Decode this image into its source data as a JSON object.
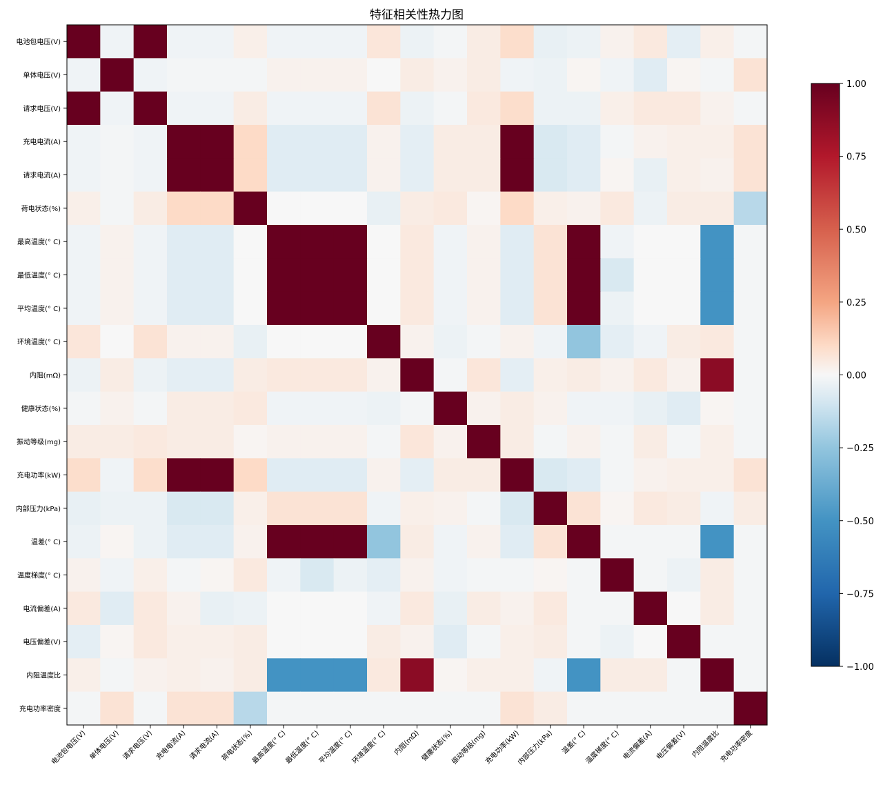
{
  "chart_data": {
    "type": "heatmap",
    "title": "特征相关性热力图",
    "labels": [
      "电池包电压(V)",
      "单体电压(V)",
      "请求电压(V)",
      "充电电流(A)",
      "请求电流(A)",
      "荷电状态(%)",
      "最高温度(° C)",
      "最低温度(° C)",
      "平均温度(° C)",
      "环境温度(° C)",
      "内阻(mΩ)",
      "健康状态(%)",
      "振动等级(mg)",
      "充电功率(kW)",
      "内部压力(kPa)",
      "温差(° C)",
      "温度梯度(° C)",
      "电流偏差(A)",
      "电压偏差(V)",
      "内阻温度比",
      "充电功率密度"
    ],
    "matrix": [
      [
        1.0,
        -0.02,
        1.0,
        -0.02,
        -0.02,
        0.03,
        -0.02,
        -0.02,
        -0.02,
        0.06,
        -0.03,
        -0.01,
        0.04,
        0.09,
        -0.04,
        -0.03,
        0.02,
        0.05,
        -0.05,
        0.03,
        -0.01
      ],
      [
        -0.02,
        1.0,
        -0.02,
        -0.01,
        -0.01,
        -0.01,
        0.02,
        0.02,
        0.02,
        0.0,
        0.04,
        0.02,
        0.04,
        -0.02,
        -0.03,
        0.01,
        -0.02,
        -0.06,
        0.01,
        -0.01,
        0.07
      ],
      [
        1.0,
        -0.02,
        1.0,
        -0.02,
        -0.02,
        0.04,
        -0.02,
        -0.02,
        -0.02,
        0.07,
        -0.03,
        -0.01,
        0.05,
        0.09,
        -0.03,
        -0.03,
        0.03,
        0.05,
        0.05,
        0.02,
        -0.01
      ],
      [
        -0.02,
        -0.01,
        -0.02,
        1.0,
        1.0,
        0.1,
        -0.06,
        -0.06,
        -0.06,
        0.02,
        -0.05,
        0.04,
        0.04,
        1.0,
        -0.08,
        -0.06,
        -0.01,
        0.02,
        0.03,
        0.03,
        0.07
      ],
      [
        -0.02,
        -0.01,
        -0.02,
        1.0,
        1.0,
        0.1,
        -0.06,
        -0.06,
        -0.06,
        0.02,
        -0.05,
        0.04,
        0.04,
        1.0,
        -0.08,
        -0.06,
        0.01,
        -0.04,
        0.03,
        0.02,
        0.07
      ],
      [
        0.03,
        -0.01,
        0.04,
        0.1,
        0.1,
        1.0,
        0.0,
        0.0,
        0.0,
        -0.04,
        0.04,
        0.05,
        0.01,
        0.1,
        0.03,
        0.02,
        0.05,
        -0.03,
        0.04,
        0.04,
        -0.16
      ],
      [
        -0.02,
        0.02,
        -0.02,
        -0.06,
        -0.06,
        0.0,
        1.0,
        1.0,
        1.0,
        0.0,
        0.05,
        -0.02,
        0.02,
        -0.06,
        0.07,
        1.0,
        -0.02,
        0.0,
        0.0,
        -0.5,
        -0.01
      ],
      [
        -0.02,
        0.02,
        -0.02,
        -0.06,
        -0.06,
        0.0,
        1.0,
        1.0,
        1.0,
        0.0,
        0.05,
        -0.02,
        0.02,
        -0.06,
        0.07,
        1.0,
        -0.08,
        0.0,
        0.0,
        -0.5,
        -0.01
      ],
      [
        -0.02,
        0.02,
        -0.02,
        -0.06,
        -0.06,
        0.0,
        1.0,
        1.0,
        1.0,
        0.0,
        0.05,
        -0.02,
        0.02,
        -0.06,
        0.07,
        1.0,
        -0.03,
        0.0,
        0.0,
        -0.5,
        -0.01
      ],
      [
        0.06,
        0.0,
        0.07,
        0.02,
        0.02,
        -0.04,
        0.0,
        0.0,
        0.0,
        1.0,
        0.02,
        -0.03,
        -0.01,
        0.02,
        -0.02,
        -0.25,
        -0.05,
        -0.02,
        0.04,
        0.05,
        -0.01
      ],
      [
        -0.03,
        0.04,
        -0.03,
        -0.05,
        -0.05,
        0.04,
        0.05,
        0.05,
        0.05,
        0.02,
        1.0,
        -0.01,
        0.06,
        -0.05,
        0.03,
        0.04,
        0.02,
        0.05,
        0.02,
        0.88,
        -0.01
      ],
      [
        -0.01,
        0.02,
        -0.01,
        0.04,
        0.04,
        0.05,
        -0.02,
        -0.02,
        -0.02,
        -0.03,
        -0.01,
        1.0,
        0.02,
        0.04,
        0.02,
        -0.02,
        -0.02,
        -0.04,
        -0.06,
        0.01,
        -0.01
      ],
      [
        0.04,
        0.04,
        0.05,
        0.04,
        0.04,
        0.01,
        0.02,
        0.02,
        0.02,
        -0.01,
        0.06,
        0.02,
        1.0,
        0.04,
        -0.01,
        0.02,
        -0.01,
        0.04,
        -0.01,
        0.03,
        -0.01
      ],
      [
        0.09,
        -0.02,
        0.09,
        1.0,
        1.0,
        0.1,
        -0.06,
        -0.06,
        -0.06,
        0.02,
        -0.05,
        0.04,
        0.04,
        1.0,
        -0.08,
        -0.06,
        -0.01,
        0.02,
        0.03,
        0.03,
        0.07
      ],
      [
        -0.04,
        -0.03,
        -0.03,
        -0.08,
        -0.08,
        0.03,
        0.07,
        0.07,
        0.07,
        -0.02,
        0.03,
        0.02,
        -0.01,
        -0.08,
        1.0,
        0.07,
        0.01,
        0.05,
        0.04,
        -0.02,
        0.04
      ],
      [
        -0.03,
        0.01,
        -0.03,
        -0.06,
        -0.06,
        0.02,
        1.0,
        1.0,
        1.0,
        -0.25,
        0.04,
        -0.02,
        0.02,
        -0.06,
        0.07,
        1.0,
        -0.01,
        -0.01,
        -0.01,
        -0.5,
        -0.01
      ],
      [
        0.02,
        -0.02,
        0.03,
        -0.01,
        0.01,
        0.05,
        -0.02,
        -0.08,
        -0.03,
        -0.05,
        0.02,
        -0.02,
        -0.01,
        -0.01,
        0.01,
        -0.01,
        1.0,
        -0.01,
        -0.03,
        0.04,
        -0.01
      ],
      [
        0.05,
        -0.06,
        0.05,
        0.02,
        -0.04,
        -0.03,
        0.0,
        0.0,
        0.0,
        -0.02,
        0.05,
        -0.04,
        0.04,
        0.02,
        0.05,
        -0.01,
        -0.01,
        1.0,
        0.0,
        0.04,
        -0.01
      ],
      [
        -0.05,
        0.01,
        0.05,
        0.03,
        0.03,
        0.04,
        0.0,
        0.0,
        0.0,
        0.04,
        0.02,
        -0.06,
        -0.01,
        0.03,
        0.04,
        -0.01,
        -0.03,
        0.0,
        1.0,
        -0.01,
        -0.01
      ],
      [
        0.03,
        -0.01,
        0.02,
        0.03,
        0.02,
        0.04,
        -0.5,
        -0.5,
        -0.5,
        0.05,
        0.88,
        0.01,
        0.03,
        0.03,
        -0.02,
        -0.5,
        0.04,
        0.04,
        -0.01,
        1.0,
        -0.01
      ],
      [
        -0.01,
        0.07,
        -0.01,
        0.07,
        0.07,
        -0.16,
        -0.01,
        -0.01,
        -0.01,
        -0.01,
        -0.01,
        -0.01,
        -0.01,
        0.07,
        0.04,
        -0.01,
        -0.01,
        -0.01,
        -0.01,
        -0.01,
        1.0
      ]
    ],
    "colorbar": {
      "colormap": "RdBu_r",
      "min": -1.0,
      "max": 1.0,
      "ticks": [
        "1.00",
        "0.75",
        "0.50",
        "0.25",
        "0.00",
        "−0.25",
        "−0.50",
        "−0.75",
        "−1.00"
      ],
      "tick_values": [
        1.0,
        0.75,
        0.5,
        0.25,
        0.0,
        -0.25,
        -0.5,
        -0.75,
        -1.0
      ]
    },
    "grid": false,
    "legend": "colorbar-right"
  }
}
